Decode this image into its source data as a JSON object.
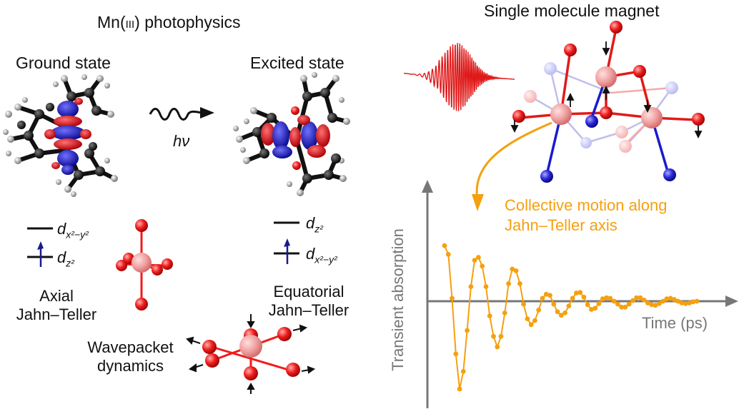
{
  "header": {
    "left_title": "Mn(III) photophysics",
    "left_title_prefix": "Mn(",
    "left_title_roman": "III",
    "left_title_suffix": ") photophysics",
    "right_title": "Single molecule magnet"
  },
  "states": {
    "ground": "Ground state",
    "excited": "Excited state",
    "photon_label": "hν"
  },
  "orbitals": {
    "ground": [
      {
        "base": "d",
        "sub": "x²−y²",
        "occupied": false
      },
      {
        "base": "d",
        "sub": "z²",
        "occupied": true
      }
    ],
    "excited": [
      {
        "base": "d",
        "sub": "z²",
        "occupied": false
      },
      {
        "base": "d",
        "sub": "x²−y²",
        "occupied": true
      }
    ]
  },
  "distortions": {
    "axial_line1": "Axial",
    "axial_line2": "Jahn–Teller",
    "equatorial_line1": "Equatorial",
    "equatorial_line2": "Jahn–Teller"
  },
  "wavepacket": {
    "line1": "Wavepacket",
    "line2": "dynamics"
  },
  "annotation": {
    "line1": "Collective motion along",
    "line2": "Jahn–Teller axis"
  },
  "colors": {
    "orange": "#f5a00f",
    "red_lobe": "#e0101a",
    "blue_lobe": "#1a1acc",
    "atom_red": "#f01c1c",
    "atom_blue": "#2a2ad8",
    "mn_pink": "#f0a0a0",
    "carbon": "#111111",
    "hydrogen": "#9a9a9a"
  },
  "chart_data": {
    "type": "line",
    "xlabel": "Time (ps)",
    "ylabel": "Transient absorption",
    "series": [
      {
        "values": [
          0.95,
          0.8,
          0.05,
          -0.9,
          -1.5,
          -1.2,
          -0.5,
          0.25,
          0.7,
          0.75,
          0.6,
          0.25,
          -0.25,
          -0.6,
          -0.78,
          -0.6,
          -0.2,
          0.3,
          0.55,
          0.52,
          0.3,
          -0.05,
          -0.3,
          -0.4,
          -0.33,
          -0.15,
          0.05,
          0.12,
          0.1,
          -0.05,
          -0.18,
          -0.24,
          -0.2,
          -0.08,
          0.05,
          0.14,
          0.15,
          0.07,
          -0.06,
          -0.14,
          -0.12,
          -0.04,
          0.04,
          0.06,
          0.05,
          0.0,
          -0.05,
          -0.1,
          -0.1,
          -0.05,
          0.01,
          0.06,
          0.06,
          0.02,
          -0.03,
          -0.06,
          -0.07,
          -0.04,
          0.0,
          0.04,
          0.05,
          0.03,
          0.0,
          -0.03,
          -0.04,
          -0.03,
          -0.01,
          0.0
        ]
      }
    ]
  }
}
